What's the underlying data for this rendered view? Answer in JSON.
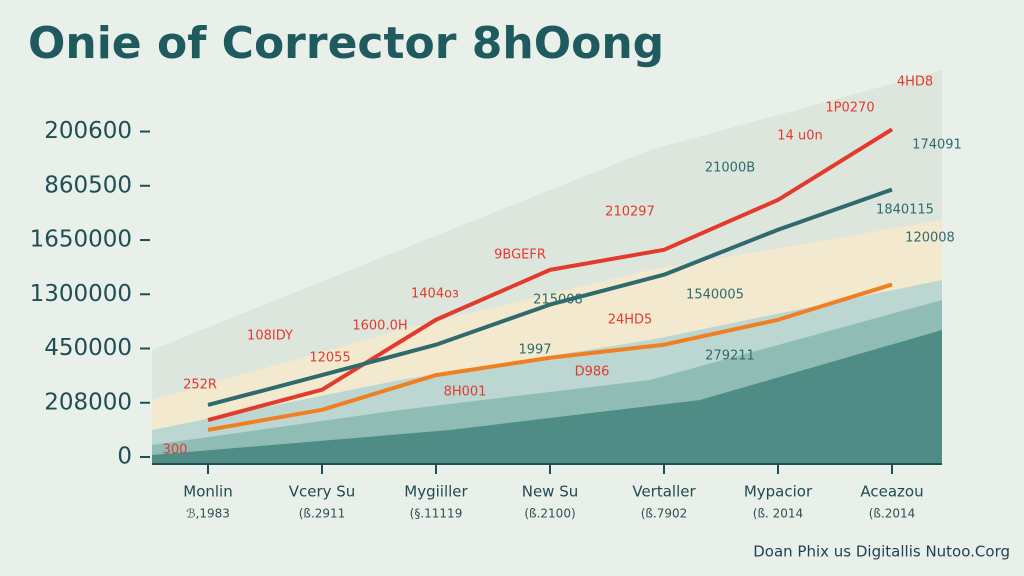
{
  "chart_data": {
    "type": "line",
    "title": "Onie of Corrector 8hOong",
    "categories": [
      "Monlin",
      "Vcery Su",
      "Mygiiller",
      "New Su",
      "Vertaller",
      "Mypacior",
      "Aceazou"
    ],
    "category_sublabels": [
      "ℬ,1983",
      "(ß.2911",
      "(§.11119",
      "(ß.2100)",
      "(ß.7902",
      "(ß. 2014",
      "(ß.2014"
    ],
    "ylim": [
      0,
      6.6
    ],
    "yticks": [
      {
        "value": 0,
        "label": "0"
      },
      {
        "value": 1,
        "label": "208000"
      },
      {
        "value": 2,
        "label": "450000"
      },
      {
        "value": 3,
        "label": "1300000"
      },
      {
        "value": 4,
        "label": "1650000"
      },
      {
        "value": 5,
        "label": "860500"
      },
      {
        "value": 6,
        "label": "200600"
      }
    ],
    "series": [
      {
        "color": "#e23b2e",
        "values": [
          0.68,
          1.24,
          2.53,
          3.45,
          3.82,
          4.74,
          6.04
        ]
      },
      {
        "color": "#2f6b6e",
        "values": [
          0.96,
          1.51,
          2.07,
          2.81,
          3.36,
          4.19,
          4.93
        ]
      },
      {
        "color": "#f07f22",
        "values": [
          0.5,
          0.87,
          1.51,
          1.83,
          2.07,
          2.53,
          3.18
        ]
      }
    ],
    "annotations": [
      "4HD8",
      "1P0270",
      "14 u0n",
      "21000B",
      "210297",
      "9BGEFR",
      "1404oз",
      "1600.0H",
      "108IDY",
      "252R",
      "12055",
      "215008",
      "1540005",
      "24HD5",
      "1997",
      "D986",
      "279211",
      "1840115",
      "120008",
      "300",
      "8H001",
      "174091"
    ],
    "footer": "Doan Phix us Digitallis Nutoo.Corg"
  }
}
